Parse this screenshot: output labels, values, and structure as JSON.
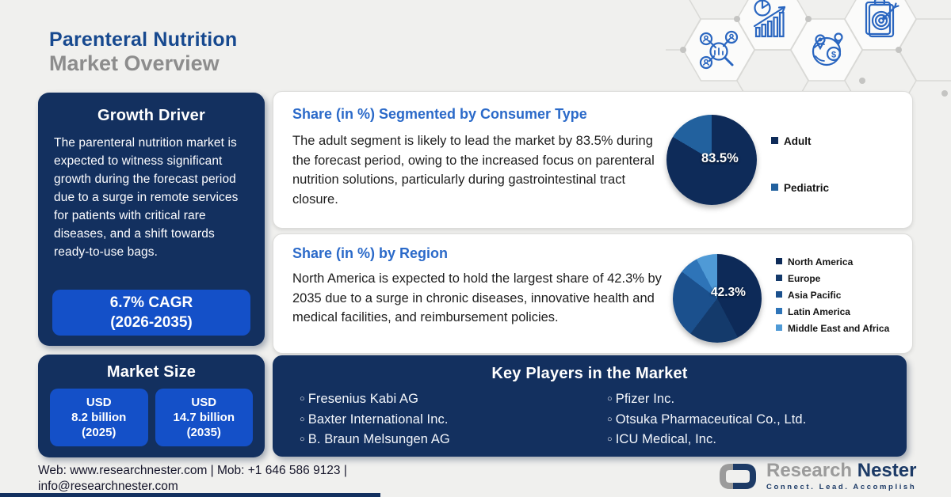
{
  "header": {
    "title_line1": "Parenteral Nutrition",
    "title_line2": "Market Overview"
  },
  "growth_driver": {
    "heading": "Growth Driver",
    "body": "The parenteral nutrition market is expected to witness significant growth during the forecast period due to a surge in remote services for patients with critical rare diseases, and a shift towards ready-to-use bags.",
    "cagr_line1": "6.7% CAGR",
    "cagr_line2": "(2026-2035)"
  },
  "market_size": {
    "heading": "Market Size",
    "values": [
      {
        "line1": "USD",
        "line2": "8.2 billion",
        "line3": "(2025)"
      },
      {
        "line1": "USD",
        "line2": "14.7 billion",
        "line3": "(2035)"
      }
    ]
  },
  "consumer_card": {
    "heading": "Share (in %) Segmented by Consumer Type",
    "body": "The adult segment is likely to lead the market by 83.5% during the forecast period, owing to the increased focus on parenteral nutrition solutions, particularly during gastrointestinal tract closure."
  },
  "region_card": {
    "heading": "Share (in %) by Region",
    "body": "North America is expected to hold the largest share of 42.3% by 2035 due to a surge in chronic diseases, innovative health and medical facilities, and reimbursement policies."
  },
  "key_players": {
    "heading": "Key Players in the Market",
    "column1": [
      "Fresenius Kabi AG",
      "Baxter International Inc.",
      "B. Braun Melsungen AG"
    ],
    "column2": [
      "Pfizer Inc.",
      "Otsuka Pharmaceutical Co., Ltd.",
      "ICU Medical, Inc."
    ]
  },
  "footer": {
    "line1": "Web: www.researchnester.com | Mob: +1 646 586 9123 |",
    "line2": "info@researchnester.com"
  },
  "logo": {
    "name1": "Research",
    "name2": "Nester",
    "tagline": "Connect. Lead. Accomplish"
  },
  "colors": {
    "background": "#f0f0ee",
    "navy_panel": "#13305f",
    "royal_blue_button": "#1450c8",
    "card_heading_blue": "#2b6ac9",
    "title_navy": "#17498f",
    "title_gray": "#8d8d8d",
    "icon_line_blue": "#2a66c0"
  },
  "chart_data": [
    {
      "type": "pie",
      "title": "Share (in %) Segmented by Consumer Type",
      "labels": [
        "Adult",
        "Pediatric"
      ],
      "values": [
        83.5,
        16.5
      ],
      "colors": [
        "#0e2b59",
        "#22619e"
      ],
      "center_label": "83.5%",
      "legend_position": "right"
    },
    {
      "type": "pie",
      "title": "Share (in %) by Region",
      "labels": [
        "North America",
        "Europe",
        "Asia Pacific",
        "Latin America",
        "Middle East and Africa"
      ],
      "values": [
        42.3,
        18,
        25,
        7,
        7.7
      ],
      "colors": [
        "#0d2a58",
        "#143a6b",
        "#1b508d",
        "#2e74b8",
        "#4f9ad6"
      ],
      "center_label": "42.3%",
      "legend_position": "right"
    }
  ]
}
